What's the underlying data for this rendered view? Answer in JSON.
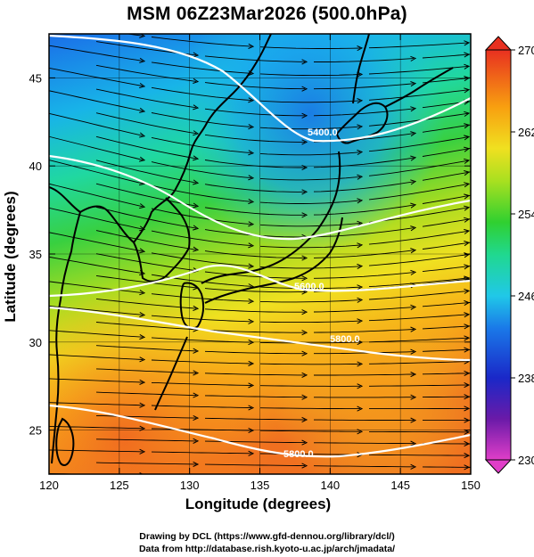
{
  "title": "MSM 06Z23Mar2026 (500.0hPa)",
  "xaxis": {
    "label": "Longitude (degrees)",
    "range": [
      120,
      150
    ],
    "ticks": [
      120,
      125,
      130,
      135,
      140,
      145,
      150
    ]
  },
  "yaxis": {
    "label": "Latitude  (degrees)",
    "range": [
      22.5,
      47.5
    ],
    "ticks": [
      25,
      30,
      35,
      40,
      45
    ]
  },
  "colorbar": {
    "ticks": [
      270,
      262,
      254,
      246,
      238,
      230
    ],
    "min": 230,
    "max": 270,
    "colors": [
      "#e03ec8",
      "#5a1aa0",
      "#1a2ad8",
      "#1a8ae8",
      "#20d8e0",
      "#20d090",
      "#30d030",
      "#a8e020",
      "#f0e020",
      "#f8a010",
      "#f05020",
      "#e83020"
    ]
  },
  "contours": {
    "color": "#ffffff",
    "labels": [
      "5400.0",
      "5600.0",
      "5800.0"
    ]
  },
  "credits": [
    "Drawing by DCL (https://www.gfd-dennou.org/library/dcl/)",
    "Data from http://database.rish.kyoto-u.ac.jp/arch/jmadata/"
  ]
}
